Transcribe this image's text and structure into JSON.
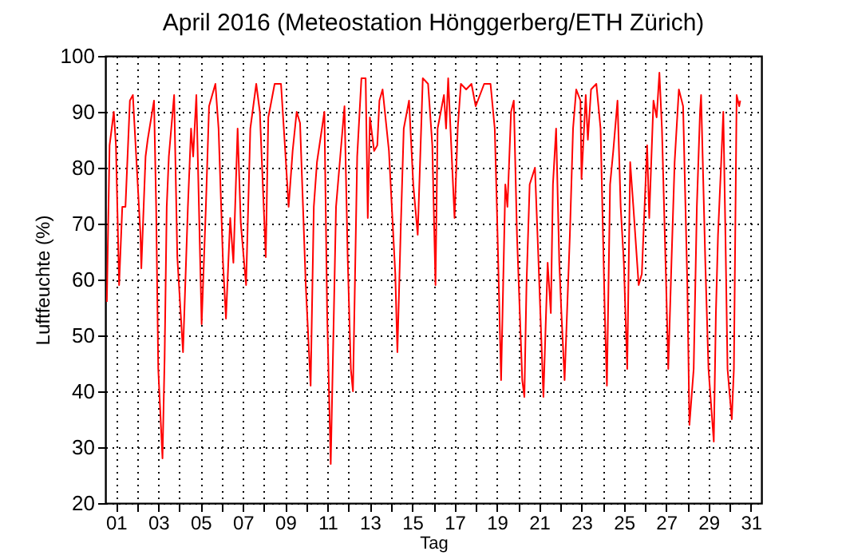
{
  "chart_data": {
    "type": "line",
    "title": "April 2016  (Meteostation Hönggerberg/ETH Zürich)",
    "xlabel": "Tag",
    "ylabel": "Luftfeuchte (%)",
    "x": [
      0.57,
      0.7,
      0.9,
      1.0,
      1.15,
      1.3,
      1.45,
      1.66,
      1.8,
      2.16,
      2.2,
      2.4,
      2.5,
      2.8,
      2.9,
      3.0,
      3.2,
      3.3,
      3.4,
      3.5,
      3.75,
      3.9,
      4.17,
      4.4,
      4.55,
      4.65,
      4.8,
      5.05,
      5.25,
      5.4,
      5.7,
      5.85,
      6.06,
      6.2,
      6.4,
      6.55,
      6.75,
      6.9,
      7.15,
      7.35,
      7.63,
      7.8,
      8.08,
      8.2,
      8.5,
      8.8,
      9.0,
      9.16,
      9.35,
      9.54,
      9.7,
      9.97,
      10.2,
      10.35,
      10.5,
      10.85,
      10.98,
      11.15,
      11.4,
      11.6,
      11.8,
      11.95,
      12.1,
      12.2,
      12.4,
      12.6,
      12.8,
      12.9,
      13.0,
      13.2,
      13.35,
      13.45,
      13.6,
      13.9,
      14.2,
      14.3,
      14.45,
      14.6,
      14.85,
      15.05,
      15.26,
      15.5,
      15.75,
      15.95,
      16.1,
      16.2,
      16.5,
      16.6,
      16.7,
      17.0,
      17.15,
      17.3,
      17.55,
      17.8,
      18.0,
      18.4,
      18.7,
      18.9,
      19.0,
      19.2,
      19.4,
      19.5,
      19.67,
      19.8,
      19.95,
      20.2,
      20.3,
      20.4,
      20.55,
      20.8,
      20.95,
      21.2,
      21.4,
      21.55,
      21.65,
      21.8,
      21.95,
      22.05,
      22.2,
      22.45,
      22.6,
      22.75,
      22.95,
      23.0,
      23.2,
      23.3,
      23.45,
      23.7,
      23.9,
      24.1,
      24.2,
      24.35,
      24.5,
      24.7,
      24.85,
      25.0,
      25.16,
      25.3,
      25.45,
      25.7,
      25.85,
      26.1,
      26.2,
      26.4,
      26.55,
      26.68,
      26.8,
      27.0,
      27.1,
      27.25,
      27.4,
      27.6,
      27.8,
      28.0,
      28.1,
      28.3,
      28.45,
      28.6,
      28.65,
      28.85,
      29.0,
      29.25,
      29.35,
      29.45,
      29.6,
      29.7,
      29.8,
      29.9,
      30.1,
      30.2,
      30.33,
      30.45,
      30.5
    ],
    "values": [
      56,
      84,
      90,
      84,
      59,
      73,
      73,
      92,
      93,
      68,
      62,
      82,
      85,
      92,
      73,
      44,
      28,
      46,
      73,
      82,
      93,
      64,
      47,
      73,
      87,
      82,
      93,
      52,
      73,
      91,
      95,
      87,
      63,
      53,
      71,
      63,
      87,
      70,
      59,
      87,
      95,
      90,
      64,
      89,
      95,
      95,
      83,
      73,
      83,
      90,
      88,
      59,
      41,
      73,
      81,
      90,
      54,
      27,
      73,
      82,
      91,
      64,
      44,
      40,
      82,
      96,
      96,
      71,
      89,
      83,
      84,
      92,
      94,
      83,
      61,
      47,
      68,
      87,
      92,
      77,
      68,
      96,
      95,
      84,
      59,
      87,
      93,
      87,
      96,
      71,
      87,
      95,
      94,
      95,
      91,
      95,
      95,
      87,
      73,
      42,
      77,
      73,
      90,
      92,
      68,
      42,
      39,
      59,
      77,
      80,
      65,
      39,
      63,
      54,
      77,
      87,
      63,
      54,
      42,
      68,
      87,
      94,
      92,
      78,
      93,
      85,
      94,
      95,
      87,
      54,
      41,
      77,
      83,
      92,
      73,
      63,
      44,
      81,
      73,
      59,
      61,
      84,
      71,
      92,
      89,
      97,
      87,
      59,
      44,
      63,
      81,
      94,
      91,
      59,
      34,
      44,
      73,
      90,
      93,
      63,
      44,
      31,
      54,
      68,
      81,
      90,
      68,
      44,
      35,
      44,
      93,
      91,
      92
    ],
    "color": "#ff0000",
    "xlim": [
      0.5,
      31.5
    ],
    "ylim": [
      20,
      100
    ],
    "xticks": [
      {
        "value": 1,
        "label": "01"
      },
      {
        "value": 2,
        "label": null
      },
      {
        "value": 3,
        "label": "03"
      },
      {
        "value": 4,
        "label": null
      },
      {
        "value": 5,
        "label": "05"
      },
      {
        "value": 6,
        "label": null
      },
      {
        "value": 7,
        "label": "07"
      },
      {
        "value": 8,
        "label": null
      },
      {
        "value": 9,
        "label": "09"
      },
      {
        "value": 10,
        "label": null
      },
      {
        "value": 11,
        "label": "11"
      },
      {
        "value": 12,
        "label": null
      },
      {
        "value": 13,
        "label": "13"
      },
      {
        "value": 14,
        "label": null
      },
      {
        "value": 15,
        "label": "15"
      },
      {
        "value": 16,
        "label": null
      },
      {
        "value": 17,
        "label": "17"
      },
      {
        "value": 18,
        "label": null
      },
      {
        "value": 19,
        "label": "19"
      },
      {
        "value": 20,
        "label": null
      },
      {
        "value": 21,
        "label": "21"
      },
      {
        "value": 22,
        "label": null
      },
      {
        "value": 23,
        "label": "23"
      },
      {
        "value": 24,
        "label": null
      },
      {
        "value": 25,
        "label": "25"
      },
      {
        "value": 26,
        "label": null
      },
      {
        "value": 27,
        "label": "27"
      },
      {
        "value": 28,
        "label": null
      },
      {
        "value": 29,
        "label": "29"
      },
      {
        "value": 30,
        "label": null
      },
      {
        "value": 31,
        "label": "31"
      }
    ],
    "yticks": [
      20,
      30,
      40,
      50,
      60,
      70,
      80,
      90,
      100
    ],
    "grid": true,
    "marker": "none",
    "line_style": "solid"
  }
}
